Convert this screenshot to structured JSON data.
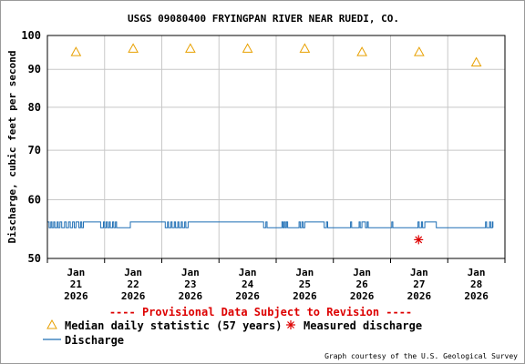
{
  "chart_data": {
    "type": "line",
    "title": "USGS 09080400 FRYINGPAN RIVER NEAR RUEDI, CO.",
    "ylabel": "Discharge, cubic feet per second",
    "yscale": "log",
    "ylim": [
      50,
      100
    ],
    "yticks": [
      50,
      60,
      70,
      80,
      90,
      100
    ],
    "xlim": [
      0,
      8
    ],
    "xticks": [
      {
        "x": 0.5,
        "month": "Jan",
        "day": "21",
        "year": "2026"
      },
      {
        "x": 1.5,
        "month": "Jan",
        "day": "22",
        "year": "2026"
      },
      {
        "x": 2.5,
        "month": "Jan",
        "day": "23",
        "year": "2026"
      },
      {
        "x": 3.5,
        "month": "Jan",
        "day": "24",
        "year": "2026"
      },
      {
        "x": 4.5,
        "month": "Jan",
        "day": "25",
        "year": "2026"
      },
      {
        "x": 5.5,
        "month": "Jan",
        "day": "26",
        "year": "2026"
      },
      {
        "x": 6.5,
        "month": "Jan",
        "day": "27",
        "year": "2026"
      },
      {
        "x": 7.5,
        "month": "Jan",
        "day": "28",
        "year": "2026"
      }
    ],
    "grid": true,
    "series": [
      {
        "name": "Median daily statistic (57 years)",
        "kind": "marker-triangle",
        "color": "#e8a000",
        "x": [
          0.5,
          1.5,
          2.5,
          3.5,
          4.5,
          5.5,
          6.5,
          7.5
        ],
        "y": [
          95,
          96,
          96,
          96,
          96,
          95,
          95,
          92
        ]
      },
      {
        "name": "Measured discharge",
        "kind": "marker-asterisk",
        "color": "#dd0000",
        "x": [
          6.49
        ],
        "y": [
          53
        ]
      },
      {
        "name": "Discharge",
        "kind": "line",
        "color": "#1f6fb5",
        "low": 55,
        "high": 56,
        "x_start": 0.0,
        "x_end": 7.79,
        "high_intervals": [
          [
            0.0,
            0.03
          ],
          [
            0.06,
            0.08
          ],
          [
            0.11,
            0.13
          ],
          [
            0.17,
            0.19
          ],
          [
            0.22,
            0.25
          ],
          [
            0.3,
            0.33
          ],
          [
            0.37,
            0.4
          ],
          [
            0.44,
            0.47
          ],
          [
            0.5,
            0.55
          ],
          [
            0.58,
            0.6
          ],
          [
            0.63,
            0.93
          ],
          [
            0.98,
            1.0
          ],
          [
            1.03,
            1.05
          ],
          [
            1.08,
            1.1
          ],
          [
            1.14,
            1.16
          ],
          [
            1.19,
            1.21
          ],
          [
            1.45,
            2.06
          ],
          [
            2.1,
            2.12
          ],
          [
            2.16,
            2.18
          ],
          [
            2.22,
            2.24
          ],
          [
            2.28,
            2.3
          ],
          [
            2.34,
            2.36
          ],
          [
            2.4,
            2.42
          ],
          [
            2.46,
            3.78
          ],
          [
            3.82,
            3.84
          ],
          [
            4.1,
            4.12
          ],
          [
            4.14,
            4.16
          ],
          [
            4.18,
            4.2
          ],
          [
            4.4,
            4.42
          ],
          [
            4.45,
            4.47
          ],
          [
            4.5,
            4.84
          ],
          [
            4.88,
            4.9
          ],
          [
            5.3,
            5.32
          ],
          [
            5.45,
            5.47
          ],
          [
            5.5,
            5.56
          ],
          [
            5.59,
            5.61
          ],
          [
            6.02,
            6.04
          ],
          [
            6.48,
            6.5
          ],
          [
            6.54,
            6.56
          ],
          [
            6.6,
            6.8
          ],
          [
            7.66,
            7.68
          ],
          [
            7.73,
            7.75
          ],
          [
            7.78,
            7.79
          ]
        ]
      }
    ],
    "legend": [
      {
        "label": "Median daily statistic (57 years)",
        "symbol": "triangle",
        "color": "#e8a000"
      },
      {
        "label": "Measured discharge",
        "symbol": "asterisk",
        "color": "#dd0000"
      },
      {
        "label": "Discharge",
        "symbol": "line",
        "color": "#1f6fb5"
      }
    ],
    "annotation": "---- Provisional Data Subject to Revision ----",
    "credit": "Graph courtesy of the U.S. Geological Survey"
  }
}
